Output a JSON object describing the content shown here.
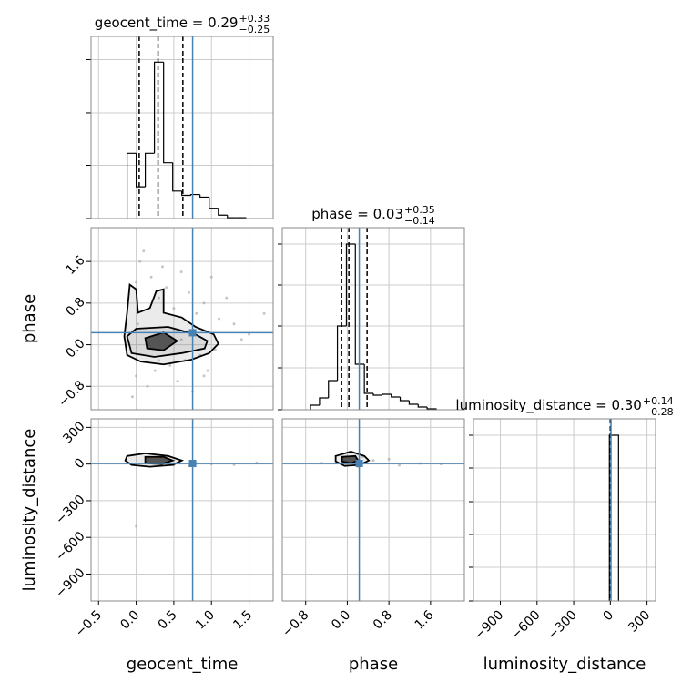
{
  "chart_data": {
    "type": "corner",
    "grid": true,
    "truth_color": "#4682b4",
    "hist_color": "#000000",
    "point_color": "#a0a0a0",
    "parameters": [
      {
        "label": "geocent_time",
        "title": "geocent_time = 0.29",
        "title_plus": "+0.33",
        "title_minus": "−0.25",
        "lim": [
          -0.6,
          1.82
        ],
        "ticks": [
          {
            "value": -0.5,
            "label": "−0.5"
          },
          {
            "value": 0,
            "label": "0.0"
          },
          0.5,
          {
            "value": 1,
            "label": "1.0"
          },
          1.5
        ],
        "truth": 0.75,
        "quantiles": [
          0.04,
          0.29,
          0.62
        ],
        "hist": {
          "bins": [
            -0.121,
            0.0,
            0.121,
            0.242,
            0.364,
            0.485,
            0.606,
            0.727,
            0.848,
            0.97,
            1.091,
            1.212,
            1.333,
            1.455
          ],
          "counts": [
            76,
            37,
            76,
            182,
            65,
            32,
            27,
            28,
            25,
            12,
            4,
            1,
            1
          ],
          "ylim": [
            0,
            212
          ],
          "yticks": [
            0,
            62,
            123,
            185
          ]
        }
      },
      {
        "label": "phase",
        "title": "phase = 0.03",
        "title_plus": "+0.35",
        "title_minus": "−0.14",
        "lim": [
          -1.25,
          2.25
        ],
        "ticks": [
          {
            "value": -0.8,
            "label": "−0.8"
          },
          {
            "value": 0,
            "label": "0.0"
          },
          0.8,
          1.6
        ],
        "truth": 0.23,
        "quantiles": [
          -0.11,
          0.03,
          0.38
        ],
        "hist": {
          "bins": [
            -0.707,
            -0.534,
            -0.362,
            -0.19,
            -0.017,
            0.155,
            0.328,
            0.5,
            0.672,
            0.845,
            1.017,
            1.19,
            1.362,
            1.534,
            1.707
          ],
          "counts": [
            5,
            13,
            32,
            92,
            182,
            50,
            18,
            16,
            17,
            14,
            10,
            6,
            3,
            1
          ],
          "ylim": [
            0,
            200
          ],
          "yticks": [
            0,
            46,
            92,
            137,
            182
          ]
        }
      },
      {
        "label": "luminosity_distance",
        "title": "luminosity_distance = 0.30",
        "title_plus": "+0.14",
        "title_minus": "−0.28",
        "lim": [
          -1120,
          370
        ],
        "ticks": [
          {
            "value": -900,
            "label": "−900"
          },
          {
            "value": -600,
            "label": "−600"
          },
          {
            "value": -300,
            "label": "−300"
          },
          0,
          300
        ],
        "truth": 5,
        "quantiles": [
          0.02,
          0.3,
          0.44
        ],
        "hist": {
          "bins": [
            -8,
            67
          ],
          "counts": [
            182
          ],
          "ylim": [
            0,
            200
          ],
          "yticks": [
            0,
            37,
            73,
            109,
            146,
            182
          ]
        }
      }
    ],
    "pairs": [
      {
        "points": {
          "x": [
            0.0,
            0.05,
            0.1,
            0.2,
            0.3,
            0.35,
            0.4,
            0.5,
            0.6,
            0.7,
            0.8,
            0.9,
            1.0,
            1.1,
            1.2,
            1.3,
            1.5,
            1.7,
            0.0,
            0.15,
            0.25,
            0.45,
            0.55,
            0.65,
            0.75,
            0.85,
            0.95,
            1.05,
            0.02,
            0.5,
            1.4,
            0.3,
            0.6,
            0.9,
            -0.05,
            0.2
          ],
          "y": [
            1.2,
            1.6,
            1.8,
            1.3,
            0.9,
            1.5,
            1.1,
            0.7,
            1.4,
            1.0,
            0.6,
            0.8,
            1.3,
            0.5,
            0.9,
            0.4,
            0.2,
            0.6,
            -0.6,
            -0.8,
            -0.5,
            -0.4,
            -0.7,
            -0.3,
            -0.9,
            -0.2,
            -0.5,
            -0.1,
            0.4,
            0.3,
            0.1,
            -0.3,
            0.1,
            -0.6,
            -1.0,
            0.0
          ]
        },
        "contours": [
          {
            "x": [
              -0.085,
              0.0,
              0.024,
              0.182,
              0.267,
              0.364,
              0.364,
              0.606,
              0.788,
              1.03,
              1.091,
              0.97,
              0.727,
              0.364,
              0.061,
              -0.121,
              -0.158,
              -0.121
            ],
            "y": [
              1.155,
              1.065,
              0.614,
              0.704,
              1.029,
              1.065,
              0.614,
              0.523,
              0.343,
              0.199,
              0.018,
              -0.162,
              -0.289,
              -0.379,
              -0.325,
              -0.199,
              0.162,
              0.614
            ]
          },
          {
            "x": [
              -0.121,
              0.0,
              0.424,
              0.788,
              0.945,
              0.909,
              0.606,
              0.242,
              -0.061
            ],
            "y": [
              0.162,
              0.307,
              0.343,
              0.199,
              0.072,
              -0.072,
              -0.162,
              -0.235,
              -0.162
            ]
          },
          {
            "x": [
              0.121,
              0.364,
              0.545,
              0.364,
              0.145
            ],
            "y": [
              0.126,
              0.235,
              0.072,
              -0.108,
              -0.072
            ]
          }
        ]
      },
      {
        "points": {
          "x": [
            0.0,
            0.3,
            0.5,
            0.8,
            1.0,
            1.3,
            1.6,
            0.2,
            0.7
          ],
          "y": [
            -510,
            20,
            -10,
            5,
            0,
            -5,
            10,
            40,
            -15
          ]
        },
        "contours": [
          {
            "x": [
              -0.121,
              0.121,
              0.424,
              0.606,
              0.485,
              0.182,
              -0.061,
              -0.145
            ],
            "y": [
              66,
              88,
              66,
              29,
              -7,
              -22,
              -7,
              29
            ]
          },
          {
            "x": [
              0.121,
              0.364,
              0.485,
              0.339,
              0.121
            ],
            "y": [
              59,
              59,
              29,
              0,
              7
            ]
          }
        ]
      },
      {
        "points": {
          "x": [
            -0.5,
            0.2,
            0.5,
            0.8,
            1.0,
            1.4,
            1.8,
            0.3
          ],
          "y": [
            10,
            -20,
            30,
            40,
            -10,
            5,
            0,
            60
          ]
        },
        "contours": [
          {
            "x": [
              -0.224,
              0.069,
              0.328,
              0.414,
              0.241,
              -0.052,
              -0.224
            ],
            "y": [
              66,
              102,
              66,
              29,
              -7,
              -15,
              22
            ]
          },
          {
            "x": [
              -0.103,
              0.155,
              0.207,
              0.069,
              -0.103
            ],
            "y": [
              59,
              66,
              29,
              7,
              22
            ]
          }
        ]
      }
    ]
  }
}
